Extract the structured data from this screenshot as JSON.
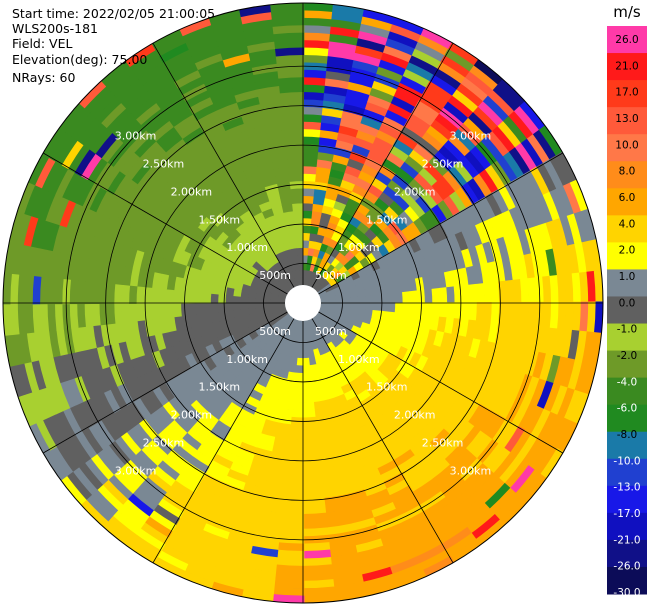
{
  "info": {
    "start_time": "Start time: 2022/02/05 21:00:05",
    "instrument": "WLS200s-181",
    "field": "Field: VEL",
    "elevation": "Elevation(deg): 75.00",
    "nrays": "NRays: 60"
  },
  "chart_data": {
    "type": "heatmap",
    "projection": "polar-ppi",
    "field": "VEL",
    "units": "m/s",
    "elevation_deg": 75.0,
    "n_rays": 60,
    "range_rings": [
      "500m",
      "1.00km",
      "1.50km",
      "2.00km",
      "2.50km",
      "3.00km"
    ],
    "range_ring_values_m": [
      500,
      1000,
      1500,
      2000,
      2500,
      3000
    ],
    "max_range_m": 3800,
    "spoke_angles_deg": [
      0,
      30,
      60,
      90,
      120,
      150,
      180,
      210,
      240,
      270,
      300,
      330
    ],
    "colorbar": {
      "label": "m/s",
      "ticks": [
        "26.0",
        "21.0",
        "17.0",
        "13.0",
        "10.0",
        "8.0",
        "6.0",
        "4.0",
        "2.0",
        "1.0",
        "0.0",
        "-1.0",
        "-2.0",
        "-4.0",
        "-6.0",
        "-8.0",
        "-10.0",
        "-13.0",
        "-17.0",
        "-21.0",
        "-26.0",
        "-30.0"
      ],
      "bands": [
        {
          "color": "#ff3aa8"
        },
        {
          "color": "#ff1a1a"
        },
        {
          "color": "#ff3a1a"
        },
        {
          "color": "#ff5a3a"
        },
        {
          "color": "#ff7848"
        },
        {
          "color": "#ff8c1a"
        },
        {
          "color": "#ffa600"
        },
        {
          "color": "#ffd400"
        },
        {
          "color": "#ffff00"
        },
        {
          "color": "#7a8894"
        },
        {
          "color": "#606060"
        },
        {
          "color": "#a8d030"
        },
        {
          "color": "#6e9a28"
        },
        {
          "color": "#3a8a20"
        },
        {
          "color": "#208a20"
        },
        {
          "color": "#1a7aa8"
        },
        {
          "color": "#2040d0"
        },
        {
          "color": "#1818e8"
        },
        {
          "color": "#1010c0"
        },
        {
          "color": "#101088"
        },
        {
          "color": "#0c0c58"
        }
      ]
    }
  }
}
